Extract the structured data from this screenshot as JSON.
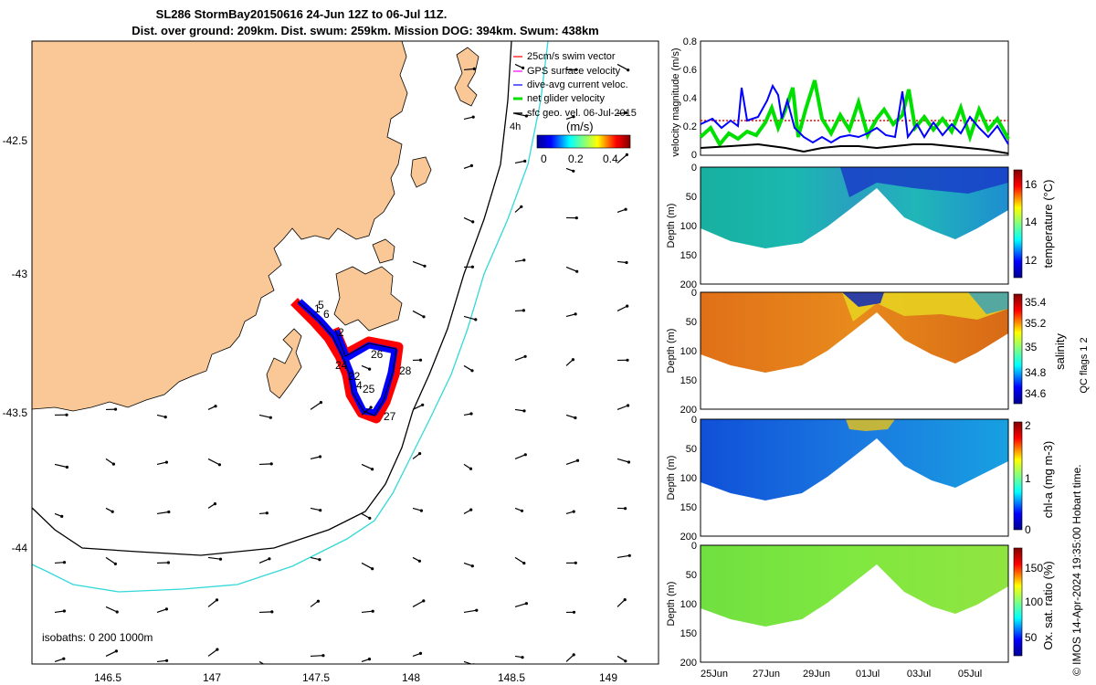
{
  "header": {
    "title_line1": "SL286 StormBay20150616 24-Jun 12Z to 06-Jul 11Z.",
    "title_line2": "Dist. over ground: 209km. Dist. swum: 259km. Mission DOG: 394km. Swum: 438km"
  },
  "map": {
    "lon_ticks": [
      "146.5",
      "147",
      "147.5",
      "148",
      "148.5",
      "149"
    ],
    "lat_ticks": [
      "-42.5",
      "-43",
      "-43.5",
      "-44"
    ],
    "legend": [
      {
        "label": "25cm/s swim vector",
        "color": "#ff0000"
      },
      {
        "label": "GPS surface velocity",
        "color": "#ff00ff"
      },
      {
        "label": "dive-avg current veloc.",
        "color": "#0000ff"
      },
      {
        "label": "net glider velocity",
        "color": "#00e000"
      },
      {
        "label": "sfc geo. vel. 06-Jul-2015",
        "color": "#000000"
      }
    ],
    "legend_extra": "4h",
    "colorbar_label": "(m/s)",
    "colorbar_ticks": [
      "0",
      "0.2",
      "0.4"
    ],
    "isobaths_text": "isobaths: 0   200  1000m",
    "track_labels": [
      "1",
      "2",
      "4",
      "5",
      "6",
      "22",
      "24",
      "25",
      "26",
      "27",
      "28"
    ],
    "colors": {
      "land": "#fac896",
      "isobath_200": "#000000",
      "isobath_1000": "#33d8d8",
      "track_red": "#ff0000",
      "track_blue": "#0000ff"
    }
  },
  "velocity_panel": {
    "ylabel": "velocity magnitude (m/s)",
    "yticks": [
      "0",
      "0.2",
      "0.4",
      "0.6",
      "0.8"
    ]
  },
  "sections": [
    {
      "colorbar_label": "temperature (°C)",
      "cb_ticks": [
        "16",
        "14",
        "12"
      ]
    },
    {
      "colorbar_label": "salinity",
      "cb_ticks": [
        "35.4",
        "35.2",
        "35",
        "34.8",
        "34.6"
      ]
    },
    {
      "colorbar_label": "chl-a (mg m-3)",
      "cb_ticks": [
        "2",
        "1",
        "0"
      ]
    },
    {
      "colorbar_label": "Ox. sat. ratio (%)",
      "cb_ticks": [
        "150",
        "100",
        "50"
      ]
    }
  ],
  "section_ylabel": "Depth (m)",
  "depth_ticks": [
    "0",
    "50",
    "100",
    "150",
    "200"
  ],
  "date_ticks": [
    "25Jun",
    "27Jun",
    "29Jun",
    "01Jul",
    "03Jul",
    "05Jul"
  ],
  "qc_label": "QC flags 1  2",
  "copyright": "© IMOS 14-Apr-2024 19:35:00 Hobart time."
}
